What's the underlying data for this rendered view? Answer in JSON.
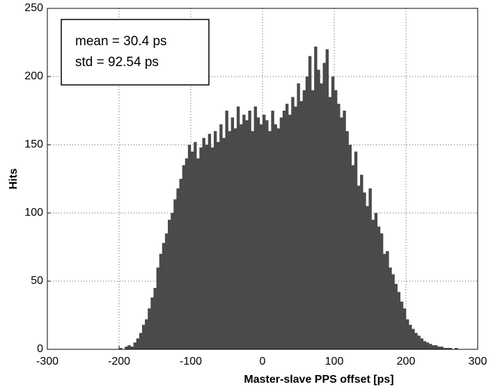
{
  "chart_data": {
    "type": "histogram",
    "xlabel": "Master-slave PPS offset [ps]",
    "ylabel": "Hits",
    "annotations": [
      "mean = 30.4 ps",
      "std = 92.54 ps"
    ],
    "color": "#4a4a4a",
    "grid": true,
    "xlim": [
      -300,
      300
    ],
    "ylim": [
      0,
      250
    ],
    "xticks": [
      -300,
      -200,
      -100,
      0,
      100,
      200,
      300
    ],
    "yticks": [
      0,
      50,
      100,
      150,
      200,
      250
    ],
    "bins": [
      -200,
      -196,
      -192,
      -188,
      -184,
      -180,
      -176,
      -172,
      -168,
      -164,
      -160,
      -156,
      -152,
      -148,
      -144,
      -140,
      -136,
      -132,
      -128,
      -124,
      -120,
      -116,
      -112,
      -108,
      -104,
      -100,
      -96,
      -92,
      -88,
      -84,
      -80,
      -76,
      -72,
      -68,
      -64,
      -60,
      -56,
      -52,
      -48,
      -44,
      -40,
      -36,
      -32,
      -28,
      -24,
      -20,
      -16,
      -12,
      -8,
      -4,
      0,
      4,
      8,
      12,
      16,
      20,
      24,
      28,
      32,
      36,
      40,
      44,
      48,
      52,
      56,
      60,
      64,
      68,
      72,
      76,
      80,
      84,
      88,
      92,
      96,
      100,
      104,
      108,
      112,
      116,
      120,
      124,
      128,
      132,
      136,
      140,
      144,
      148,
      152,
      156,
      160,
      164,
      168,
      172,
      176,
      180,
      184,
      188,
      192,
      196,
      200,
      204,
      208,
      212,
      216,
      220,
      224,
      228,
      232,
      236,
      240,
      244,
      248,
      252,
      256,
      260,
      264,
      268,
      272,
      276,
      280
    ],
    "counts": [
      1,
      0,
      2,
      3,
      2,
      5,
      8,
      12,
      18,
      22,
      30,
      38,
      45,
      60,
      70,
      78,
      85,
      95,
      100,
      110,
      118,
      125,
      135,
      140,
      150,
      145,
      152,
      140,
      148,
      155,
      150,
      158,
      148,
      160,
      152,
      165,
      155,
      175,
      160,
      170,
      162,
      178,
      165,
      172,
      168,
      175,
      160,
      178,
      170,
      165,
      172,
      168,
      160,
      175,
      165,
      162,
      170,
      175,
      180,
      172,
      185,
      178,
      195,
      182,
      190,
      200,
      215,
      190,
      222,
      205,
      195,
      210,
      220,
      185,
      200,
      190,
      180,
      170,
      175,
      160,
      150,
      135,
      145,
      120,
      128,
      115,
      105,
      118,
      95,
      100,
      90,
      85,
      70,
      72,
      60,
      55,
      48,
      42,
      35,
      30,
      22,
      18,
      15,
      12,
      10,
      8,
      6,
      5,
      4,
      3,
      3,
      2,
      2,
      1,
      1,
      1,
      0,
      1,
      0,
      0
    ]
  }
}
